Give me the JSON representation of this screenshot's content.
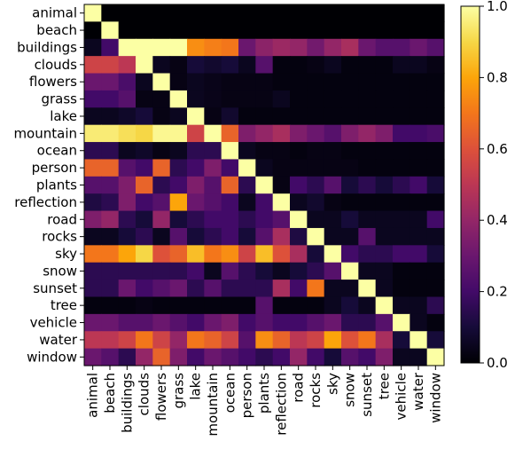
{
  "chart_data": {
    "type": "heatmap",
    "title": "",
    "xlabel": "",
    "ylabel": "",
    "labels": [
      "animal",
      "beach",
      "buildings",
      "clouds",
      "flowers",
      "grass",
      "lake",
      "mountain",
      "ocean",
      "person",
      "plants",
      "reflection",
      "road",
      "rocks",
      "sky",
      "snow",
      "sunset",
      "tree",
      "vehicle",
      "water",
      "window"
    ],
    "colormap": "inferno",
    "vmin": 0.0,
    "vmax": 1.0,
    "colorbar_ticks": [
      "0.0",
      "0.2",
      "0.4",
      "0.6",
      "0.8",
      "1.0"
    ],
    "colorbar_tick_values": [
      0.0,
      0.2,
      0.4,
      0.6,
      0.8,
      1.0
    ],
    "matrix": [
      [
        1.0,
        0.0,
        0.0,
        0.0,
        0.0,
        0.0,
        0.0,
        0.0,
        0.0,
        0.0,
        0.0,
        0.0,
        0.0,
        0.0,
        0.0,
        0.0,
        0.0,
        0.0,
        0.0,
        0.0,
        0.0
      ],
      [
        0.0,
        1.0,
        0.0,
        0.0,
        0.0,
        0.0,
        0.0,
        0.0,
        0.0,
        0.0,
        0.0,
        0.0,
        0.0,
        0.0,
        0.0,
        0.0,
        0.0,
        0.0,
        0.0,
        0.0,
        0.0
      ],
      [
        0.05,
        0.2,
        1.0,
        1.0,
        1.0,
        1.0,
        0.75,
        0.72,
        0.7,
        0.3,
        0.38,
        0.42,
        0.4,
        0.32,
        0.4,
        0.45,
        0.3,
        0.25,
        0.25,
        0.3,
        0.25
      ],
      [
        0.55,
        0.55,
        0.5,
        1.0,
        0.05,
        0.03,
        0.1,
        0.08,
        0.1,
        0.05,
        0.25,
        0.02,
        0.02,
        0.03,
        0.05,
        0.02,
        0.02,
        0.02,
        0.05,
        0.05,
        0.03
      ],
      [
        0.3,
        0.3,
        0.22,
        0.05,
        1.0,
        0.03,
        0.05,
        0.04,
        0.03,
        0.03,
        0.03,
        0.02,
        0.02,
        0.02,
        0.02,
        0.02,
        0.02,
        0.02,
        0.02,
        0.02,
        0.02
      ],
      [
        0.2,
        0.2,
        0.25,
        0.03,
        0.03,
        1.0,
        0.05,
        0.04,
        0.03,
        0.03,
        0.03,
        0.05,
        0.02,
        0.02,
        0.02,
        0.02,
        0.02,
        0.02,
        0.02,
        0.02,
        0.02
      ],
      [
        0.05,
        0.05,
        0.07,
        0.1,
        0.03,
        0.05,
        1.0,
        0.03,
        0.08,
        0.02,
        0.02,
        0.02,
        0.02,
        0.02,
        0.02,
        0.02,
        0.02,
        0.02,
        0.02,
        0.02,
        0.02
      ],
      [
        0.95,
        0.95,
        0.92,
        0.9,
        0.98,
        0.98,
        0.55,
        1.0,
        0.65,
        0.35,
        0.4,
        0.45,
        0.35,
        0.3,
        0.25,
        0.35,
        0.4,
        0.35,
        0.2,
        0.2,
        0.22
      ],
      [
        0.15,
        0.15,
        0.05,
        0.07,
        0.03,
        0.05,
        0.15,
        0.15,
        1.0,
        0.05,
        0.03,
        0.03,
        0.02,
        0.03,
        0.03,
        0.02,
        0.02,
        0.02,
        0.02,
        0.02,
        0.02
      ],
      [
        0.65,
        0.65,
        0.25,
        0.2,
        0.65,
        0.15,
        0.2,
        0.35,
        0.2,
        1.0,
        0.05,
        0.03,
        0.03,
        0.03,
        0.03,
        0.03,
        0.02,
        0.02,
        0.02,
        0.02,
        0.02
      ],
      [
        0.25,
        0.25,
        0.35,
        0.65,
        0.15,
        0.2,
        0.35,
        0.25,
        0.65,
        0.15,
        1.0,
        0.03,
        0.2,
        0.15,
        0.25,
        0.1,
        0.15,
        0.1,
        0.15,
        0.2,
        0.1
      ],
      [
        0.12,
        0.15,
        0.35,
        0.2,
        0.25,
        0.8,
        0.3,
        0.25,
        0.2,
        0.05,
        0.2,
        1.0,
        0.05,
        0.08,
        0.03,
        0.02,
        0.02,
        0.02,
        0.02,
        0.02,
        0.02
      ],
      [
        0.35,
        0.4,
        0.15,
        0.1,
        0.4,
        0.1,
        0.15,
        0.2,
        0.2,
        0.15,
        0.2,
        0.25,
        1.0,
        0.05,
        0.05,
        0.1,
        0.05,
        0.05,
        0.05,
        0.05,
        0.2
      ],
      [
        0.05,
        0.05,
        0.1,
        0.15,
        0.05,
        0.25,
        0.1,
        0.15,
        0.2,
        0.1,
        0.25,
        0.45,
        0.12,
        1.0,
        0.05,
        0.05,
        0.25,
        0.05,
        0.05,
        0.05,
        0.05
      ],
      [
        0.7,
        0.7,
        0.8,
        0.9,
        0.6,
        0.65,
        0.85,
        0.7,
        0.75,
        0.55,
        0.85,
        0.6,
        0.45,
        0.1,
        1.0,
        0.2,
        0.15,
        0.15,
        0.2,
        0.2,
        0.1
      ],
      [
        0.15,
        0.15,
        0.15,
        0.15,
        0.15,
        0.15,
        0.2,
        0.05,
        0.25,
        0.15,
        0.1,
        0.05,
        0.1,
        0.15,
        0.25,
        1.0,
        0.05,
        0.05,
        0.02,
        0.02,
        0.02
      ],
      [
        0.15,
        0.15,
        0.3,
        0.2,
        0.25,
        0.3,
        0.15,
        0.25,
        0.15,
        0.15,
        0.15,
        0.45,
        0.2,
        0.7,
        0.05,
        0.05,
        1.0,
        0.05,
        0.02,
        0.02,
        0.02
      ],
      [
        0.02,
        0.02,
        0.02,
        0.03,
        0.02,
        0.02,
        0.02,
        0.02,
        0.02,
        0.02,
        0.25,
        0.02,
        0.02,
        0.02,
        0.05,
        0.1,
        0.05,
        1.0,
        0.05,
        0.05,
        0.15
      ],
      [
        0.3,
        0.3,
        0.25,
        0.25,
        0.3,
        0.25,
        0.2,
        0.3,
        0.35,
        0.2,
        0.25,
        0.2,
        0.2,
        0.25,
        0.3,
        0.15,
        0.15,
        0.25,
        1.0,
        0.05,
        0.02
      ],
      [
        0.5,
        0.5,
        0.55,
        0.7,
        0.55,
        0.4,
        0.7,
        0.65,
        0.55,
        0.25,
        0.75,
        0.65,
        0.5,
        0.55,
        0.8,
        0.6,
        0.7,
        0.45,
        0.1,
        1.0,
        0.1
      ],
      [
        0.3,
        0.25,
        0.15,
        0.4,
        0.65,
        0.35,
        0.2,
        0.3,
        0.25,
        0.2,
        0.15,
        0.2,
        0.4,
        0.2,
        0.1,
        0.25,
        0.2,
        0.35,
        0.05,
        0.05,
        1.0
      ]
    ]
  }
}
